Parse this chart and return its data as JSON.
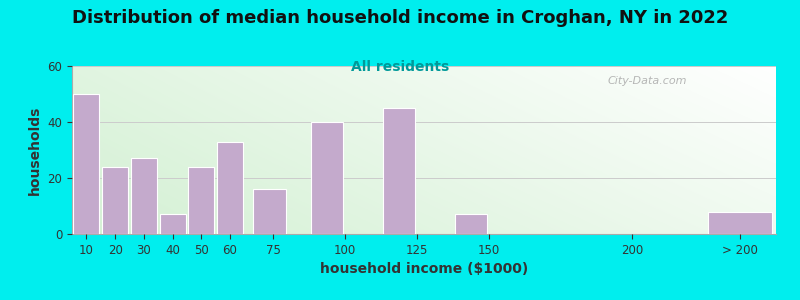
{
  "title": "Distribution of median household income in Croghan, NY in 2022",
  "subtitle": "All residents",
  "xlabel": "household income ($1000)",
  "ylabel": "households",
  "background_color": "#00EEEE",
  "bar_color": "#C4AACC",
  "bar_edge_color": "#ffffff",
  "bar_lefts": [
    5,
    15,
    25,
    35,
    45,
    55,
    67.5,
    87.5,
    112.5,
    137.5,
    175,
    225
  ],
  "bar_widths": [
    10,
    10,
    10,
    10,
    10,
    10,
    12.5,
    12.5,
    12.5,
    12.5,
    25,
    25
  ],
  "bar_heights": [
    50,
    24,
    27,
    7,
    24,
    33,
    16,
    40,
    45,
    7,
    0,
    8
  ],
  "ylim": [
    0,
    60
  ],
  "xlim": [
    5,
    250
  ],
  "yticks": [
    0,
    20,
    40,
    60
  ],
  "xtick_positions": [
    10,
    20,
    30,
    40,
    50,
    60,
    75,
    100,
    125,
    150,
    200,
    237.5
  ],
  "xtick_labels": [
    "10",
    "20",
    "30",
    "40",
    "50",
    "60",
    "75",
    "100",
    "125",
    "150",
    "200",
    "> 200"
  ],
  "watermark": "City-Data.com",
  "title_fontsize": 13,
  "subtitle_fontsize": 10,
  "axis_label_fontsize": 10,
  "tick_fontsize": 8.5,
  "subtitle_color": "#009999",
  "title_color": "#111111",
  "ylabel_color": "#333333",
  "xlabel_color": "#333333",
  "grid_color": "#cccccc",
  "watermark_color": "#aaaaaa"
}
